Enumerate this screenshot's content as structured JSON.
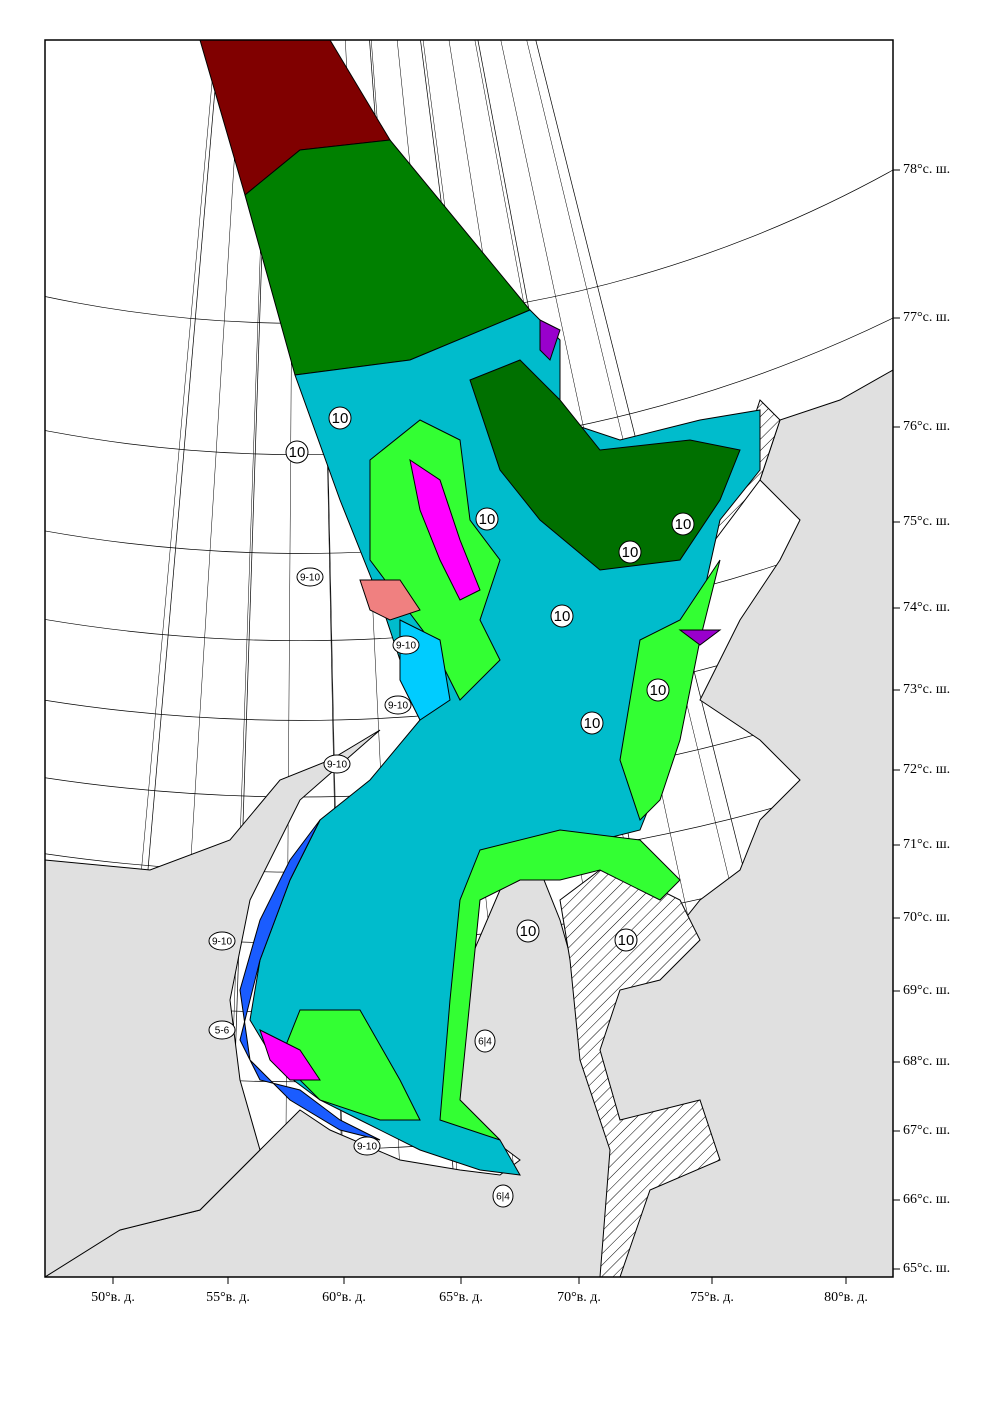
{
  "map": {
    "lat_labels": [
      "78°с. ш.",
      "77°с. ш.",
      "76°с. ш.",
      "75°с. ш.",
      "74°с. ш.",
      "73°с. ш.",
      "72°с. ш.",
      "71°с. ш.",
      "70°с. ш.",
      "69°с. ш.",
      "68°с. ш.",
      "67°с. ш.",
      "66°с. ш.",
      "65°с. ш."
    ],
    "lon_labels": [
      "50°в. д.",
      "55°в. д.",
      "60°в. д.",
      "65°в. д.",
      "70°в. д.",
      "75°в. д.",
      "80°в. д."
    ],
    "region_labels": [
      "10",
      "10",
      "10",
      "10",
      "10",
      "10",
      "10",
      "10",
      "10",
      "10",
      "9-10",
      "9-10",
      "9-10",
      "9-10",
      "9-10",
      "9-10",
      "5-6",
      "6|4",
      "6|4"
    ]
  }
}
